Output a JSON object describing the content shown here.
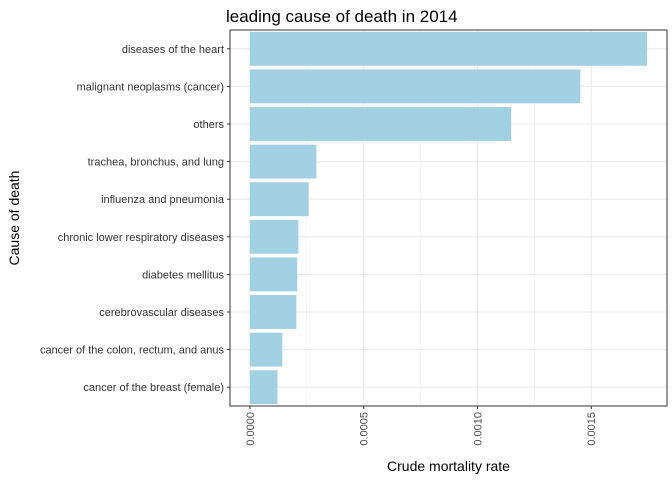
{
  "chart_data": {
    "type": "bar",
    "orientation": "horizontal",
    "title": "leading cause of death in 2014",
    "xlabel": "Crude mortality rate",
    "ylabel": "Cause of death",
    "categories": [
      "diseases of the heart",
      "malignant neoplasms (cancer)",
      "others",
      "trachea, bronchus, and lung",
      "influenza and pneumonia",
      "chronic lower respiratory diseases",
      "diabetes mellitus",
      "cerebrovascular diseases",
      "cancer of the colon, rectum, and anus",
      "cancer of the breast (female)"
    ],
    "values": [
      0.001745,
      0.001452,
      0.001148,
      0.000292,
      0.000258,
      0.000213,
      0.000208,
      0.000204,
      0.000142,
      0.000121
    ],
    "xlim": [
      -8.75e-05,
      0.001833
    ],
    "x_ticks": [
      0,
      0.0005,
      0.001,
      0.0015
    ],
    "x_tick_labels": [
      "0.0000",
      "0.0005",
      "0.0010",
      "0.0015"
    ],
    "grid": true,
    "bar_color": "#a0d0e2",
    "background": "#ffffff",
    "grid_color": "#ebebeb",
    "border_color": "#333333"
  }
}
